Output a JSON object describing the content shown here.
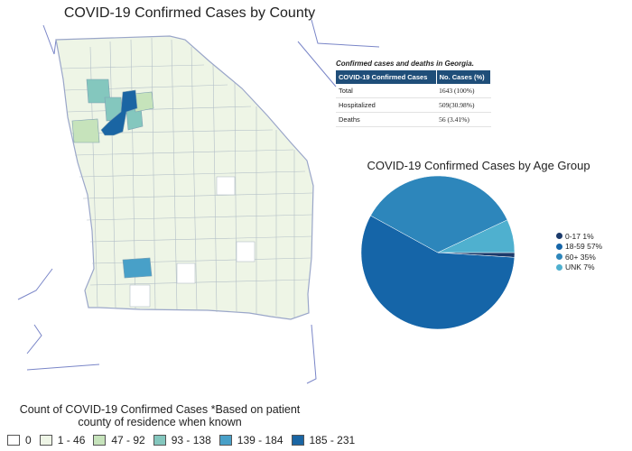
{
  "map": {
    "title": "COVID-19 Confirmed Cases by County",
    "bins": [
      {
        "label": "0",
        "color": "#ffffff"
      },
      {
        "label": "1 - 46",
        "color": "#eef5e6"
      },
      {
        "label": "47 - 92",
        "color": "#c6e3bb"
      },
      {
        "label": "93 - 138",
        "color": "#84c7be"
      },
      {
        "label": "139 - 184",
        "color": "#48a0c8"
      },
      {
        "label": "185 - 231",
        "color": "#1a65a3"
      }
    ],
    "legend_title_line1": "Count of COVID-19 Confirmed Cases *Based on patient",
    "legend_title_line2": "county of residence when known"
  },
  "stats_table": {
    "caption": "Confirmed cases and deaths in Georgia.",
    "headers": [
      "COVID-19 Confirmed Cases",
      "No. Cases (%)"
    ],
    "rows": [
      [
        "Total",
        "1643 (100%)"
      ],
      [
        "Hospitalized",
        "509(30.98%)"
      ],
      [
        "Deaths",
        "56 (3.41%)"
      ]
    ]
  },
  "chart_data": {
    "type": "pie",
    "title": "COVID-19 Confirmed Cases by Age Group",
    "legend_position": "right",
    "slices": [
      {
        "label": "0-17 1%",
        "value": 1,
        "color": "#1b3a6b"
      },
      {
        "label": "18-59 57%",
        "value": 57,
        "color": "#1565a8"
      },
      {
        "label": "60+ 35%",
        "value": 35,
        "color": "#2d86bb"
      },
      {
        "label": "UNK 7%",
        "value": 7,
        "color": "#4fb0cf"
      }
    ]
  }
}
